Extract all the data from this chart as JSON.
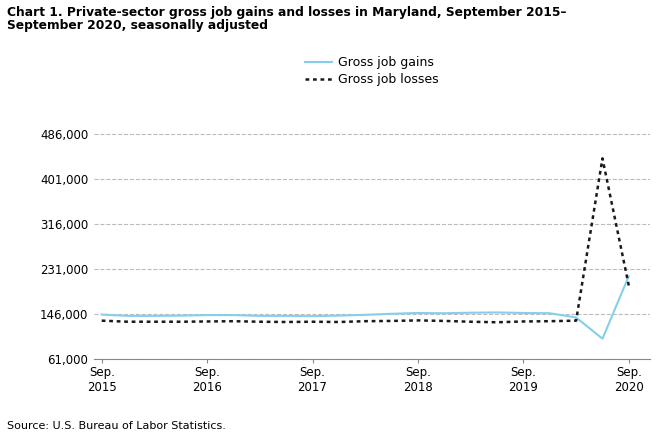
{
  "title_line1": "Chart 1. Private-sector gross job gains and losses in Maryland, September 2015–",
  "title_line2": "September 2020, seasonally adjusted",
  "source": "Source: U.S. Bureau of Labor Statistics.",
  "legend_gains": "Gross job gains",
  "legend_losses": "Gross job losses",
  "gains_color": "#87CEEB",
  "losses_color": "#1a1a1a",
  "background_color": "#ffffff",
  "grid_color": "#bbbbbb",
  "ylim": [
    61000,
    510000
  ],
  "yticks": [
    61000,
    146000,
    231000,
    316000,
    401000,
    486000
  ],
  "ytick_labels": [
    "61,000",
    "146,000",
    "231,000",
    "316,000",
    "401,000",
    "486,000"
  ],
  "xtick_positions": [
    0,
    4,
    8,
    12,
    16,
    20
  ],
  "xtick_labels": [
    "Sep.\n2015",
    "Sep.\n2016",
    "Sep.\n2017",
    "Sep.\n2018",
    "Sep.\n2019",
    "Sep.\n2020"
  ],
  "x_numeric": [
    0,
    1,
    2,
    3,
    4,
    5,
    6,
    7,
    8,
    9,
    10,
    11,
    12,
    13,
    14,
    15,
    16,
    17,
    18,
    19,
    20
  ],
  "gains": [
    145500,
    143000,
    143000,
    143500,
    144500,
    144500,
    143000,
    143000,
    142500,
    143500,
    145000,
    147000,
    148500,
    148000,
    149000,
    149500,
    148500,
    148000,
    140000,
    100000,
    218000
  ],
  "losses": [
    134000,
    132000,
    132000,
    132000,
    132500,
    133000,
    132000,
    131500,
    132000,
    131500,
    133000,
    133500,
    134500,
    133500,
    132000,
    131000,
    132500,
    133000,
    134000,
    440000,
    200000
  ]
}
